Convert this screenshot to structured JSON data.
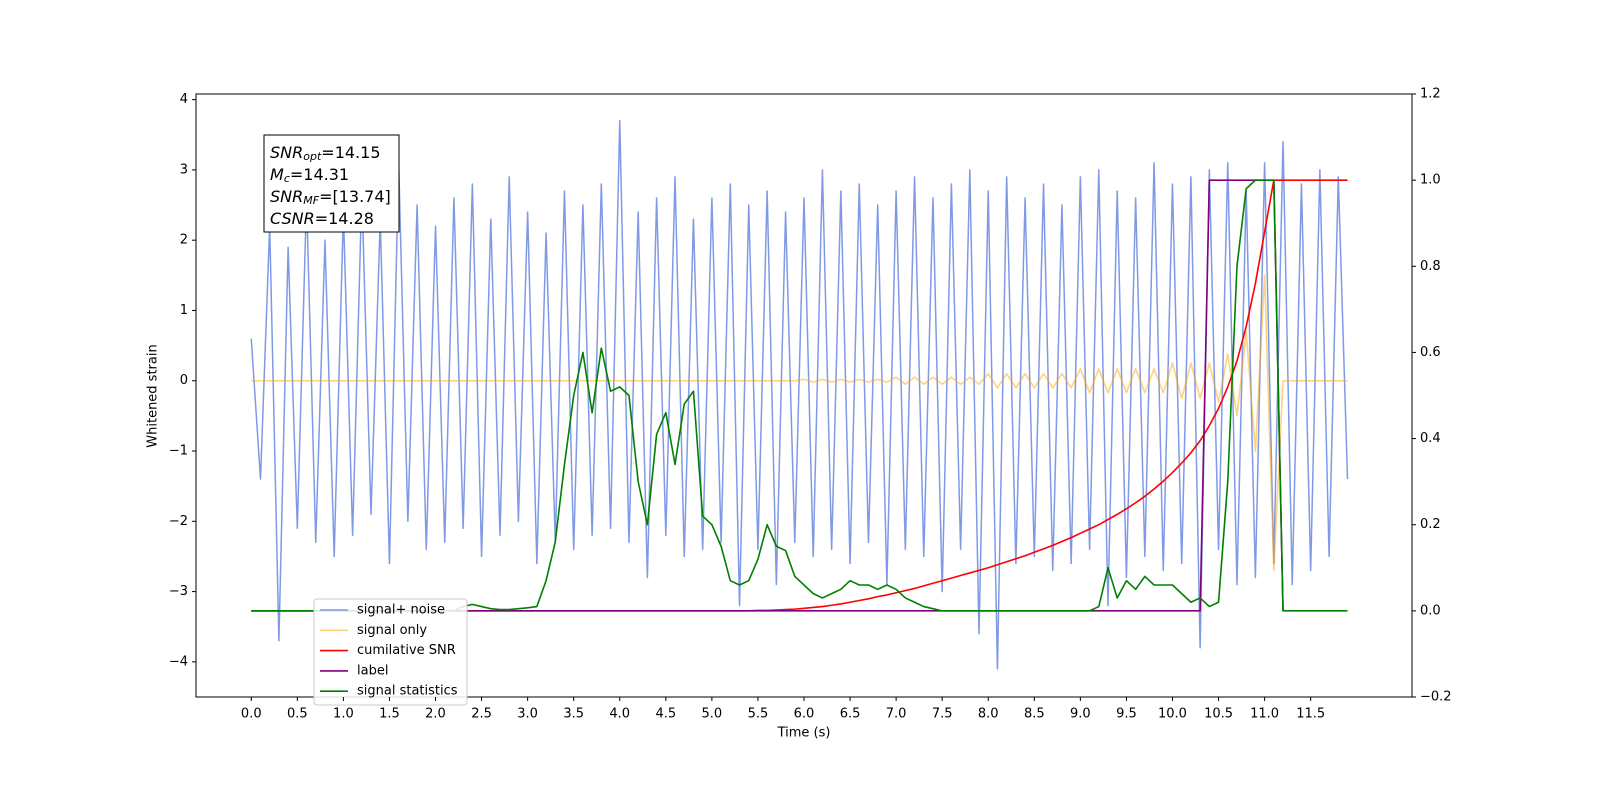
{
  "chart_data": {
    "type": "line",
    "xlabel": "Time (s)",
    "ylabel": "Whitened strain",
    "xlim": [
      -0.6,
      12.6
    ],
    "ylim": [
      -4.5,
      4.08
    ],
    "y2lim": [
      -0.2,
      1.2
    ],
    "xticks": [
      {
        "value": 0,
        "label": "0.0"
      },
      0.5,
      {
        "value": 1,
        "label": "1.0"
      },
      1.5,
      {
        "value": 2,
        "label": "2.0"
      },
      2.5,
      {
        "value": 3,
        "label": "3.0"
      },
      3.5,
      {
        "value": 4,
        "label": "4.0"
      },
      4.5,
      {
        "value": 5,
        "label": "5.0"
      },
      5.5,
      {
        "value": 6,
        "label": "6.0"
      },
      6.5,
      {
        "value": 7,
        "label": "7.0"
      },
      7.5,
      {
        "value": 8,
        "label": "8.0"
      },
      8.5,
      {
        "value": 9,
        "label": "9.0"
      },
      9.5,
      {
        "value": 10,
        "label": "10.0"
      },
      10.5,
      {
        "value": 11,
        "label": "11.0"
      },
      11.5
    ],
    "yticks": [
      {
        "value": -4,
        "label": "−4"
      },
      {
        "value": -3,
        "label": "−3"
      },
      {
        "value": -2,
        "label": "−2"
      },
      {
        "value": -1,
        "label": "−1"
      },
      0,
      1,
      2,
      3,
      4
    ],
    "y2ticks": [
      {
        "value": -0.2,
        "label": "−0.2"
      },
      {
        "value": 0,
        "label": "0.0"
      },
      0.2,
      0.4,
      0.6,
      0.8,
      {
        "value": 1,
        "label": "1.0"
      },
      1.2
    ],
    "annotations": [
      {
        "symbol": "SNR",
        "subscript": "opt",
        "text": "=14.15"
      },
      {
        "symbol": "M",
        "subscript": "c",
        "text": "=14.31"
      },
      {
        "symbol": "SNR",
        "subscript": "MF",
        "text": "=[13.74]"
      },
      {
        "symbol": "CSNR",
        "text": "=14.28"
      }
    ],
    "x": [
      0,
      0.1,
      0.2,
      0.3,
      0.4,
      0.5,
      0.6,
      0.7,
      0.8,
      0.9,
      1,
      1.1,
      1.2,
      1.3,
      1.4,
      1.5,
      1.6,
      1.7,
      1.8,
      1.9,
      2,
      2.1,
      2.2,
      2.3,
      2.4,
      2.5,
      2.6,
      2.7,
      2.8,
      2.9,
      3,
      3.1,
      3.2,
      3.3,
      3.4,
      3.5,
      3.6,
      3.7,
      3.8,
      3.9,
      4,
      4.1,
      4.2,
      4.3,
      4.4,
      4.5,
      4.6,
      4.7,
      4.8,
      4.9,
      5,
      5.1,
      5.2,
      5.3,
      5.4,
      5.5,
      5.6,
      5.7,
      5.8,
      5.9,
      6,
      6.1,
      6.2,
      6.3,
      6.4,
      6.5,
      6.6,
      6.7,
      6.8,
      6.9,
      7,
      7.1,
      7.2,
      7.3,
      7.4,
      7.5,
      7.6,
      7.7,
      7.8,
      7.9,
      8,
      8.1,
      8.2,
      8.3,
      8.4,
      8.5,
      8.6,
      8.7,
      8.8,
      8.9,
      9,
      9.1,
      9.2,
      9.3,
      9.4,
      9.5,
      9.6,
      9.7,
      9.8,
      9.9,
      10,
      10.1,
      10.2,
      10.3,
      10.4,
      10.5,
      10.6,
      10.7,
      10.8,
      10.9,
      11,
      11.1,
      11.2,
      11.3,
      11.4,
      11.5,
      11.6,
      11.7,
      11.8,
      11.9
    ],
    "series": [
      {
        "name": "signal+ noise",
        "color": "#7893e6",
        "values": [
          0.6,
          -1.4,
          2.2,
          -3.7,
          1.9,
          -2.1,
          2.6,
          -2.3,
          2.0,
          -2.5,
          2.4,
          -2.2,
          2.7,
          -1.9,
          2.3,
          -2.6,
          3.1,
          -2.0,
          2.5,
          -2.4,
          2.2,
          -2.3,
          2.6,
          -2.1,
          2.8,
          -2.5,
          2.3,
          -2.2,
          2.9,
          -2.0,
          2.4,
          -2.6,
          2.1,
          -2.3,
          2.7,
          -2.4,
          2.5,
          -2.2,
          2.8,
          -2.1,
          3.7,
          -2.3,
          2.4,
          -2.8,
          2.6,
          -2.2,
          2.9,
          -2.5,
          2.3,
          -2.4,
          2.6,
          -2.3,
          2.8,
          -3.2,
          2.5,
          -2.4,
          2.7,
          -2.9,
          2.4,
          -2.3,
          2.6,
          -2.5,
          3.0,
          -2.4,
          2.7,
          -2.6,
          2.8,
          -2.3,
          2.5,
          -2.9,
          2.7,
          -2.4,
          2.9,
          -2.5,
          2.6,
          -3.0,
          2.8,
          -2.4,
          3.0,
          -3.6,
          2.7,
          -4.1,
          2.9,
          -2.6,
          2.6,
          -2.5,
          2.8,
          -2.7,
          2.5,
          -2.6,
          2.9,
          -2.4,
          3.0,
          -3.2,
          2.7,
          -2.8,
          2.6,
          -2.5,
          3.1,
          -2.7,
          2.8,
          -2.6,
          2.9,
          -3.8,
          3.0,
          -2.4,
          3.1,
          -2.9,
          2.7,
          -2.8,
          3.1,
          -2.6,
          3.4,
          -2.9,
          2.8,
          -2.7,
          3.0,
          -2.5,
          2.9,
          -1.4
        ]
      },
      {
        "name": "signal only",
        "color": "#ffa500",
        "values": [
          0,
          0,
          0,
          0,
          0,
          0,
          0,
          0,
          0,
          0,
          0,
          0,
          0,
          0,
          0,
          0,
          0,
          0,
          0,
          0,
          0,
          0,
          0,
          0,
          0,
          0,
          0,
          0,
          0,
          0,
          0,
          0,
          0,
          0,
          0,
          0,
          0,
          0,
          0,
          0,
          0,
          0,
          0,
          0,
          0,
          0,
          0,
          0,
          0,
          0,
          0,
          0,
          0,
          0,
          0,
          0,
          0,
          0,
          0,
          0,
          0.02,
          -0.02,
          0.02,
          -0.02,
          0.02,
          -0.02,
          0.02,
          -0.02,
          0.02,
          -0.02,
          0.05,
          -0.05,
          0.05,
          -0.05,
          0.05,
          -0.05,
          0.05,
          -0.05,
          0.05,
          -0.05,
          0.1,
          -0.1,
          0.1,
          -0.1,
          0.1,
          -0.1,
          0.1,
          -0.1,
          0.1,
          -0.1,
          0.17,
          -0.17,
          0.17,
          -0.17,
          0.17,
          -0.17,
          0.17,
          -0.17,
          0.17,
          -0.17,
          0.25,
          -0.25,
          0.25,
          -0.25,
          0.25,
          -0.3,
          0.38,
          -0.5,
          0.7,
          -1.0,
          1.5,
          -2.7,
          0,
          0,
          0,
          0,
          0,
          0,
          0,
          0
        ]
      },
      {
        "name": "cumilative SNR",
        "color": "#ff0000",
        "axis": "y2",
        "values": [
          0,
          0,
          0,
          0,
          0,
          0,
          0,
          0,
          0,
          0,
          0,
          0,
          0,
          0,
          0,
          0,
          0,
          0,
          0,
          0,
          0,
          0,
          0,
          0,
          0,
          0,
          0,
          0,
          0,
          0,
          0,
          0,
          0,
          0,
          0,
          0,
          0,
          0,
          0,
          0,
          0,
          0,
          0,
          0,
          0,
          0,
          0,
          0,
          0,
          0,
          0,
          0,
          0,
          0,
          0,
          0.001,
          0.001,
          0.002,
          0.003,
          0.004,
          0.006,
          0.008,
          0.01,
          0.013,
          0.016,
          0.02,
          0.024,
          0.028,
          0.033,
          0.037,
          0.042,
          0.047,
          0.052,
          0.058,
          0.064,
          0.07,
          0.076,
          0.082,
          0.088,
          0.094,
          0.1,
          0.107,
          0.114,
          0.121,
          0.128,
          0.136,
          0.144,
          0.152,
          0.161,
          0.17,
          0.18,
          0.19,
          0.2,
          0.212,
          0.224,
          0.237,
          0.251,
          0.266,
          0.283,
          0.301,
          0.321,
          0.343,
          0.367,
          0.395,
          0.43,
          0.47,
          0.52,
          0.58,
          0.66,
          0.76,
          0.88,
          1.0,
          1.0,
          1.0,
          1.0,
          1.0,
          1.0,
          1.0,
          1.0,
          1.0
        ]
      },
      {
        "name": "label",
        "color": "#800080",
        "axis": "y2",
        "values": [
          0,
          0,
          0,
          0,
          0,
          0,
          0,
          0,
          0,
          0,
          0,
          0,
          0,
          0,
          0,
          0,
          0,
          0,
          0,
          0,
          0,
          0,
          0,
          0,
          0,
          0,
          0,
          0,
          0,
          0,
          0,
          0,
          0,
          0,
          0,
          0,
          0,
          0,
          0,
          0,
          0,
          0,
          0,
          0,
          0,
          0,
          0,
          0,
          0,
          0,
          0,
          0,
          0,
          0,
          0,
          0,
          0,
          0,
          0,
          0,
          0,
          0,
          0,
          0,
          0,
          0,
          0,
          0,
          0,
          0,
          0,
          0,
          0,
          0,
          0,
          0,
          0,
          0,
          0,
          0,
          0,
          0,
          0,
          0,
          0,
          0,
          0,
          0,
          0,
          0,
          0,
          0,
          0,
          0,
          0,
          0,
          0,
          0,
          0,
          0,
          0,
          0,
          0,
          0,
          1,
          1,
          1,
          1,
          1,
          1,
          1,
          1,
          0,
          null,
          null,
          null,
          null,
          null,
          null,
          null
        ]
      },
      {
        "name": "signal statistics",
        "color": "#008000",
        "axis": "y2",
        "values": [
          0,
          0,
          0,
          0,
          0,
          0,
          0,
          0,
          0,
          0,
          0,
          0,
          0,
          0,
          0,
          0,
          0,
          0,
          0,
          0,
          0,
          0,
          0,
          0.01,
          0.015,
          0.01,
          0.005,
          0.003,
          0.003,
          0.005,
          0.007,
          0.01,
          0.07,
          0.16,
          0.34,
          0.5,
          0.6,
          0.46,
          0.61,
          0.51,
          0.52,
          0.5,
          0.3,
          0.2,
          0.41,
          0.46,
          0.34,
          0.48,
          0.51,
          0.22,
          0.2,
          0.15,
          0.07,
          0.06,
          0.07,
          0.12,
          0.2,
          0.15,
          0.14,
          0.08,
          0.06,
          0.04,
          0.03,
          0.04,
          0.05,
          0.07,
          0.06,
          0.06,
          0.05,
          0.06,
          0.05,
          0.03,
          0.02,
          0.01,
          0.005,
          0,
          0,
          0,
          0,
          0,
          0,
          0,
          0,
          0,
          0,
          0,
          0,
          0,
          0,
          0,
          0,
          0,
          0.01,
          0.1,
          0.03,
          0.07,
          0.05,
          0.08,
          0.06,
          0.06,
          0.06,
          0.04,
          0.02,
          0.03,
          0.01,
          0.02,
          0.3,
          0.8,
          0.98,
          1.0,
          1.0,
          1.0,
          0,
          0,
          0,
          0,
          0,
          0,
          0,
          0
        ]
      }
    ]
  }
}
